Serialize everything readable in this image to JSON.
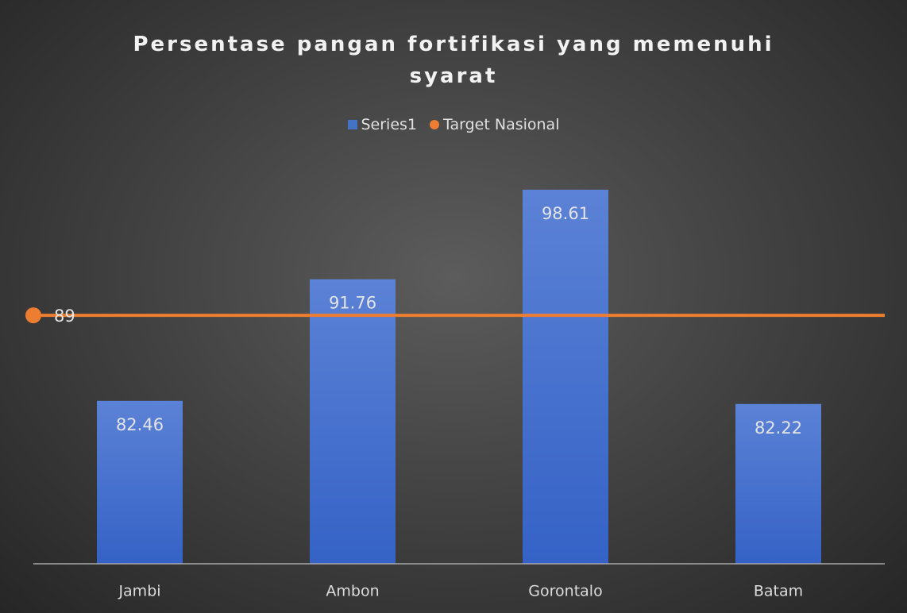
{
  "chart_data": {
    "type": "bar",
    "title": "Persentase pangan fortifikasi yang memenuhi syarat",
    "categories": [
      "Jambi",
      "Ambon",
      "Gorontalo",
      "Batam"
    ],
    "series": [
      {
        "name": "Series1",
        "color": "#4472c4",
        "values": [
          82.46,
          91.76,
          98.61,
          82.22
        ]
      },
      {
        "name": "Target Nasional",
        "color": "#ed7d31",
        "values": [
          89,
          89,
          89,
          89
        ]
      }
    ],
    "ylim": [
      70,
      100
    ],
    "legend": "top"
  }
}
